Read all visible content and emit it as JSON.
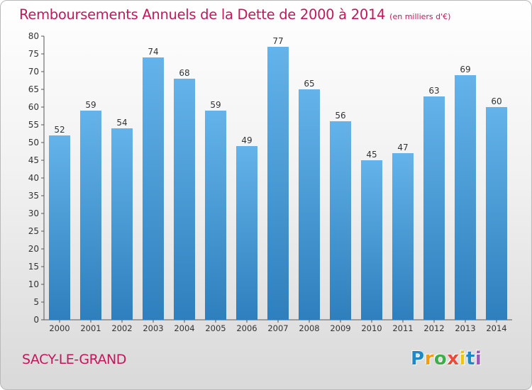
{
  "chart_data": {
    "type": "bar",
    "title": "Remboursements Annuels de la Dette de 2000 à 2014",
    "unit_note": "(en milliers d'€)",
    "categories": [
      "2000",
      "2001",
      "2002",
      "2003",
      "2004",
      "2005",
      "2006",
      "2007",
      "2008",
      "2009",
      "2010",
      "2011",
      "2012",
      "2013",
      "2014"
    ],
    "values": [
      52,
      59,
      54,
      74,
      68,
      59,
      49,
      77,
      65,
      56,
      45,
      47,
      63,
      69,
      60
    ],
    "ylim": [
      0,
      80
    ],
    "yticks": [
      0,
      5,
      10,
      15,
      20,
      25,
      30,
      35,
      40,
      45,
      50,
      55,
      60,
      65,
      70,
      75,
      80
    ],
    "grid": false,
    "legend": "none",
    "colors": {
      "bar_light": "#64b3ea",
      "bar_dark": "#2e7fbd",
      "title": "#c2185b"
    }
  },
  "footer": {
    "city": "SACY-LE-GRAND",
    "logo_text": "Proxiti"
  }
}
